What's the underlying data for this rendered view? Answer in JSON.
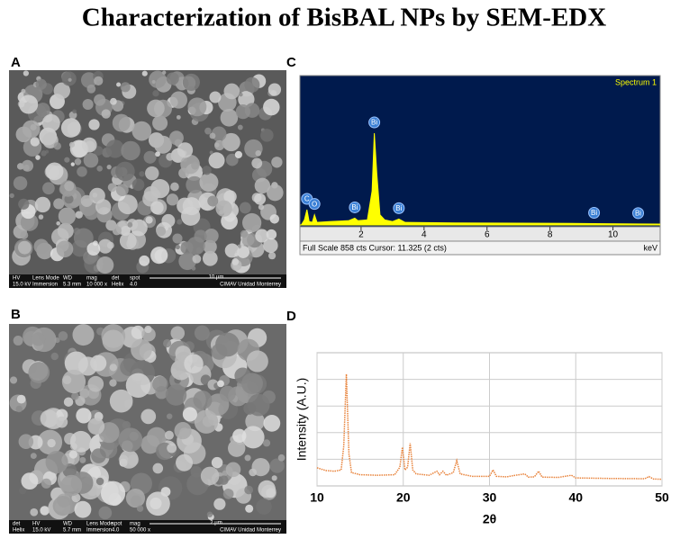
{
  "title": "Characterization of BisBAL NPs by SEM-EDX",
  "sem_images": [
    {
      "panel": "A",
      "fields": [
        {
          "label": "HV",
          "value": "15.0 kV"
        },
        {
          "label": "Lens Mode",
          "value": "Immersion"
        },
        {
          "label": "WD",
          "value": "5.3 mm"
        },
        {
          "label": "mag",
          "value": "10 000 x"
        },
        {
          "label": "det",
          "value": "Helix"
        },
        {
          "label": "spot",
          "value": "4.0"
        }
      ],
      "scale": "10 μm",
      "institution": "CIMAV Unidad Monterrey"
    },
    {
      "panel": "B",
      "fields": [
        {
          "label": "det",
          "value": "Helix"
        },
        {
          "label": "HV",
          "value": "15.0 kV"
        },
        {
          "label": "WD",
          "value": "5.7 mm"
        },
        {
          "label": "Lens Mode",
          "value": "Immersion"
        },
        {
          "label": "spot",
          "value": "4.0"
        },
        {
          "label": "mag",
          "value": "50 000 x"
        }
      ],
      "scale": "2 μm",
      "institution": "CIMAV Unidad Monterrey"
    }
  ],
  "chart_data": [
    {
      "type": "area",
      "panel": "C",
      "subtitle": "Spectrum 1",
      "x": [
        0.1,
        0.2,
        0.28,
        0.35,
        0.45,
        0.52,
        0.6,
        1.0,
        1.6,
        1.8,
        1.9,
        2.2,
        2.35,
        2.42,
        2.5,
        2.6,
        2.75,
        3.0,
        3.2,
        3.4,
        5,
        8,
        9.4,
        10.8,
        11.5
      ],
      "values": [
        0,
        30,
        90,
        20,
        15,
        60,
        15,
        20,
        25,
        40,
        25,
        30,
        200,
        540,
        300,
        60,
        30,
        20,
        35,
        15,
        12,
        10,
        8,
        6,
        5
      ],
      "color": "#ffff00",
      "xlim": [
        0,
        11.5
      ],
      "ylim": [
        0,
        858
      ],
      "xticks": [
        2,
        4,
        6,
        8,
        10
      ],
      "xlabel": "keV",
      "footer": "Full Scale 858 cts Cursor: 11.325  (2 cts)",
      "peaks": [
        {
          "label": "C",
          "x": 0.28
        },
        {
          "label": "O",
          "x": 0.52
        },
        {
          "label": "Bi",
          "x": 1.8
        },
        {
          "label": "Bi",
          "x": 2.42
        },
        {
          "label": "Bi",
          "x": 3.2
        },
        {
          "label": "Bi",
          "x": 9.4
        },
        {
          "label": "Bi",
          "x": 10.8
        }
      ]
    },
    {
      "type": "line",
      "panel": "D",
      "x": [
        10,
        11,
        12,
        12.8,
        13.1,
        13.4,
        13.7,
        14,
        15,
        17,
        19,
        19.6,
        19.9,
        20.2,
        20.5,
        20.8,
        21.1,
        21.5,
        23,
        23.9,
        24.2,
        24.6,
        25,
        25.8,
        26.2,
        26.6,
        28,
        30,
        30.4,
        30.8,
        32,
        33,
        34.1,
        34.5,
        35.2,
        35.7,
        36.1,
        38,
        39.5,
        40,
        44,
        48,
        48.5,
        49,
        50
      ],
      "values": [
        0.68,
        0.58,
        0.55,
        0.6,
        1.5,
        4.2,
        1.2,
        0.5,
        0.42,
        0.4,
        0.42,
        0.7,
        1.45,
        0.6,
        0.7,
        1.6,
        0.6,
        0.45,
        0.4,
        0.55,
        0.42,
        0.55,
        0.4,
        0.5,
        0.95,
        0.45,
        0.36,
        0.36,
        0.6,
        0.36,
        0.34,
        0.4,
        0.45,
        0.33,
        0.34,
        0.55,
        0.33,
        0.32,
        0.4,
        0.3,
        0.28,
        0.27,
        0.35,
        0.26,
        0.25
      ],
      "color": "#e8823a",
      "xlim": [
        10,
        50
      ],
      "ylim": [
        0,
        5
      ],
      "xticks": [
        10,
        20,
        30,
        40,
        50
      ],
      "ygrid": [
        1,
        2,
        3,
        4
      ],
      "grid": true,
      "xlabel": "2θ",
      "ylabel": "Intensity (A.U.)"
    }
  ]
}
